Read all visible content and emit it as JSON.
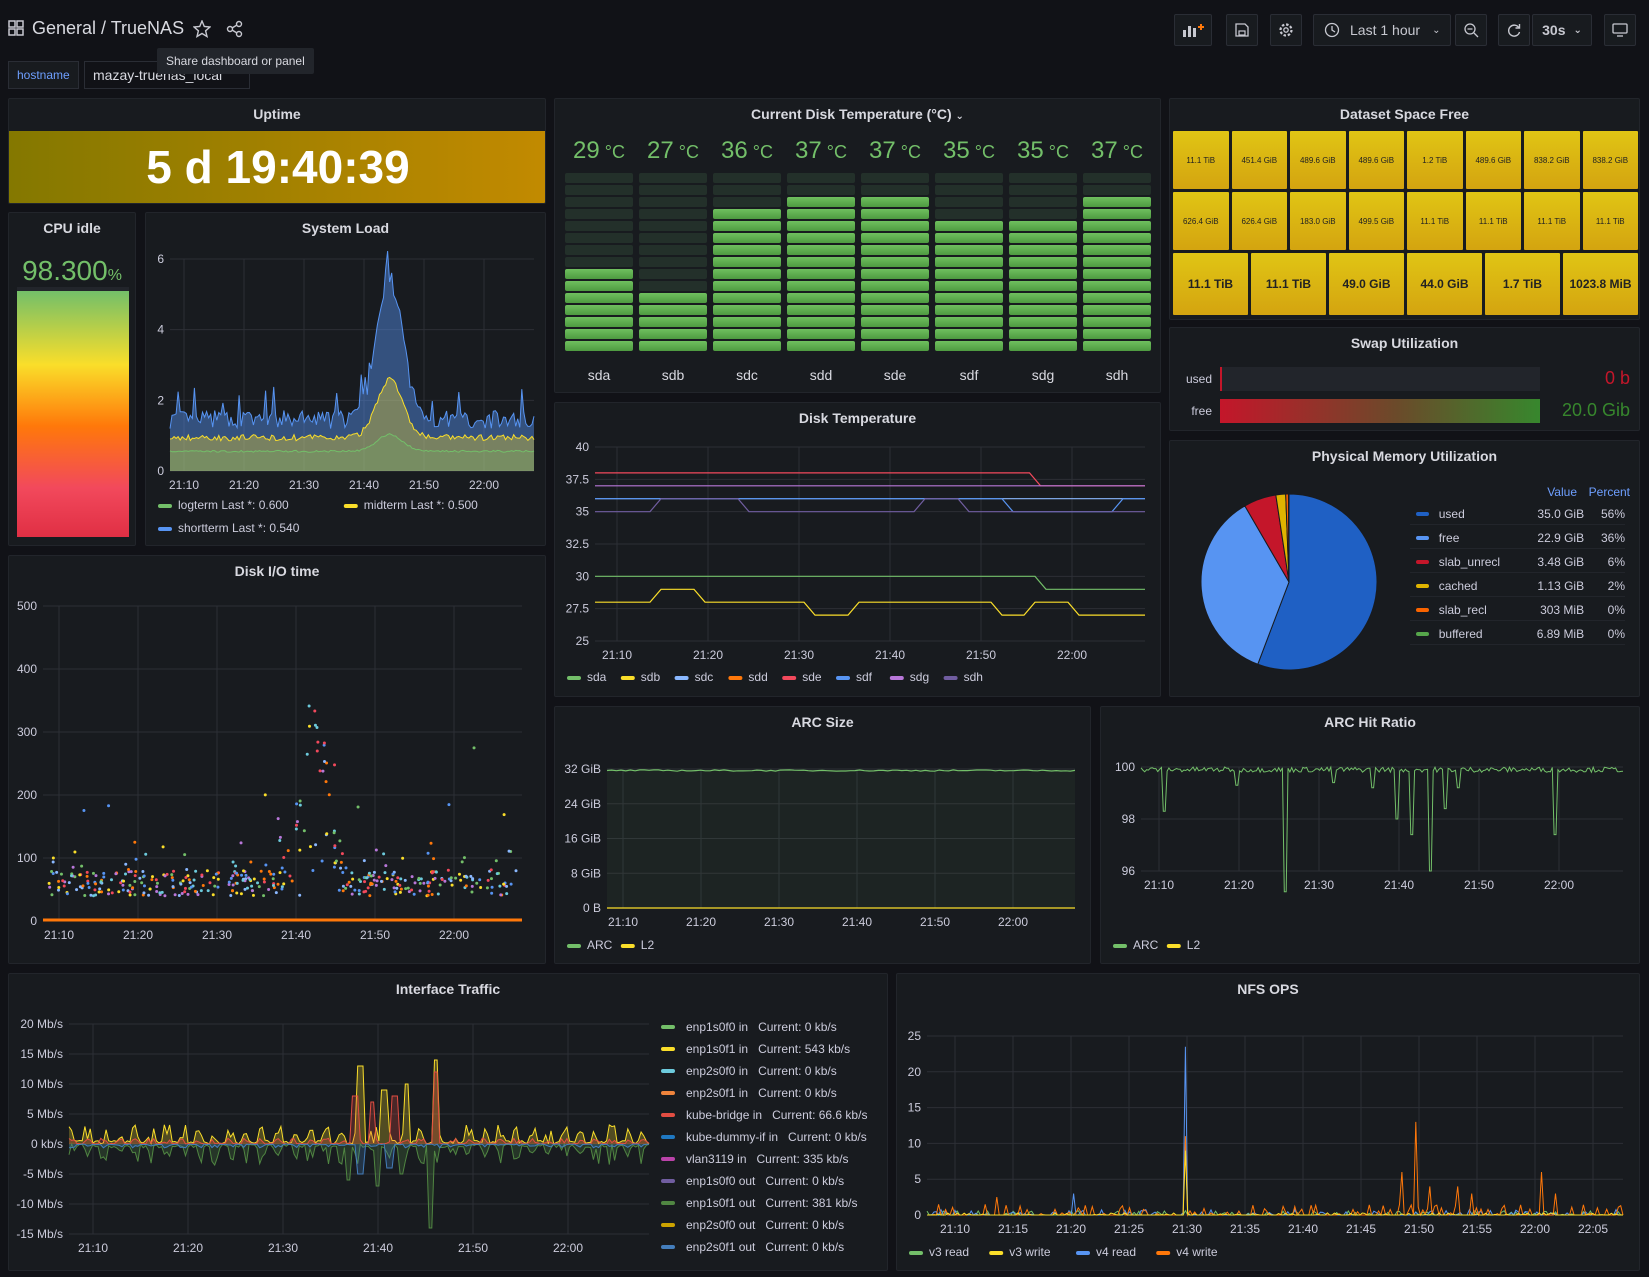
{
  "header": {
    "breadcrumb": "General / TrueNAS",
    "time_range": "Last 1 hour",
    "refresh": "30s",
    "tooltip": "Share dashboard or panel"
  },
  "variables": {
    "label": "hostname",
    "value": "mazay-truenas_local"
  },
  "colors": {
    "green": "#73bf69",
    "yellow": "#fade2a",
    "blue": "#5794f2",
    "orange": "#ff780a",
    "red": "#f2495c",
    "purple": "#b877d9",
    "cyan": "#8ab8ff",
    "accent": "#6e9fff"
  },
  "uptime": {
    "title": "Uptime",
    "value": "5 d 19:40:39"
  },
  "cpu": {
    "title": "CPU idle",
    "value": "98.300",
    "unit": "%",
    "fraction": 0.983
  },
  "sysload": {
    "title": "System Load",
    "yticks": [
      "0",
      "2",
      "4",
      "6"
    ],
    "xticks": [
      "21:10",
      "21:20",
      "21:30",
      "21:40",
      "21:50",
      "22:00"
    ],
    "legend": [
      {
        "name": "logterm",
        "stat": "Last *: 0.600",
        "color": "#73bf69"
      },
      {
        "name": "midterm",
        "stat": "Last *: 0.500",
        "color": "#fade2a"
      },
      {
        "name": "shortterm",
        "stat": "Last *: 0.540",
        "color": "#5794f2"
      }
    ]
  },
  "disktemp_now": {
    "title": "Current Disk Temperature (°C)",
    "unit": "°C",
    "min": 20,
    "max": 40,
    "disks": [
      {
        "name": "sda",
        "value": 29
      },
      {
        "name": "sdb",
        "value": 27
      },
      {
        "name": "sdc",
        "value": 36
      },
      {
        "name": "sdd",
        "value": 37
      },
      {
        "name": "sde",
        "value": 37
      },
      {
        "name": "sdf",
        "value": 35
      },
      {
        "name": "sdg",
        "value": 35
      },
      {
        "name": "sdh",
        "value": 37
      }
    ]
  },
  "dataset": {
    "title": "Dataset Space Free",
    "row1": [
      "11.1 TiB",
      "451.4 GiB",
      "489.6 GiB",
      "489.6 GiB",
      "1.2 TiB",
      "489.6 GiB",
      "838.2 GiB",
      "838.2 GiB"
    ],
    "row2": [
      "626.4 GiB",
      "626.4 GiB",
      "183.0 GiB",
      "499.5 GiB",
      "11.1 TiB",
      "11.1 TiB",
      "11.1 TiB",
      "11.1 TiB"
    ],
    "row3": [
      "11.1 TiB",
      "11.1 TiB",
      "49.0 GiB",
      "44.0 GiB",
      "1.7 TiB",
      "1023.8 MiB"
    ]
  },
  "swap": {
    "title": "Swap Utilization",
    "used_label": "used",
    "used_value": "0 b",
    "used_fraction": 0.0,
    "free_label": "free",
    "free_value": "20.0 Gib",
    "free_fraction": 1.0
  },
  "memory": {
    "title": "Physical Memory Utilization",
    "col_value": "Value",
    "col_percent": "Percent",
    "rows": [
      {
        "name": "used",
        "value": "35.0 GiB",
        "percent": "56%",
        "p": 56,
        "color": "#1f60c4"
      },
      {
        "name": "free",
        "value": "22.9 GiB",
        "percent": "36%",
        "p": 36,
        "color": "#5794f2"
      },
      {
        "name": "slab_unrecl",
        "value": "3.48 GiB",
        "percent": "6%",
        "p": 6,
        "color": "#c4162a"
      },
      {
        "name": "cached",
        "value": "1.13 GiB",
        "percent": "2%",
        "p": 1.8,
        "color": "#e0b400"
      },
      {
        "name": "slab_recl",
        "value": "303 MiB",
        "percent": "0%",
        "p": 0.5,
        "color": "#fa6400"
      },
      {
        "name": "buffered",
        "value": "6.89 MiB",
        "percent": "0%",
        "p": 0.1,
        "color": "#56a64b"
      }
    ]
  },
  "diskio": {
    "title": "Disk I/O time",
    "yticks": [
      "0",
      "100",
      "200",
      "300",
      "400",
      "500"
    ],
    "xticks": [
      "21:10",
      "21:20",
      "21:30",
      "21:40",
      "21:50",
      "22:00"
    ]
  },
  "disktemp": {
    "title": "Disk Temperature",
    "yticks": [
      "25",
      "27.5",
      "30",
      "32.5",
      "35",
      "37.5",
      "40"
    ],
    "xticks": [
      "21:10",
      "21:20",
      "21:30",
      "21:40",
      "21:50",
      "22:00"
    ],
    "legend": [
      {
        "name": "sda",
        "color": "#73bf69"
      },
      {
        "name": "sdb",
        "color": "#fade2a"
      },
      {
        "name": "sdc",
        "color": "#8ab8ff"
      },
      {
        "name": "sdd",
        "color": "#ff780a"
      },
      {
        "name": "sde",
        "color": "#f2495c"
      },
      {
        "name": "sdf",
        "color": "#5794f2"
      },
      {
        "name": "sdg",
        "color": "#b877d9"
      },
      {
        "name": "sdh",
        "color": "#705da0"
      }
    ]
  },
  "arcsize": {
    "title": "ARC Size",
    "yticks": [
      "0 B",
      "8 GiB",
      "16 GiB",
      "24 GiB",
      "32 GiB"
    ],
    "xticks": [
      "21:10",
      "21:20",
      "21:30",
      "21:40",
      "21:50",
      "22:00"
    ],
    "legend": [
      {
        "name": "ARC",
        "color": "#73bf69"
      },
      {
        "name": "L2",
        "color": "#fade2a"
      }
    ]
  },
  "archit": {
    "title": "ARC Hit Ratio",
    "yticks": [
      "96",
      "98",
      "100"
    ],
    "xticks": [
      "21:10",
      "21:20",
      "21:30",
      "21:40",
      "21:50",
      "22:00"
    ],
    "legend": [
      {
        "name": "ARC",
        "color": "#73bf69"
      },
      {
        "name": "L2",
        "color": "#fade2a"
      }
    ]
  },
  "iface": {
    "title": "Interface Traffic",
    "yticks": [
      "-15 Mb/s",
      "-10 Mb/s",
      "-5 Mb/s",
      "0 kb/s",
      "5 Mb/s",
      "10 Mb/s",
      "15 Mb/s",
      "20 Mb/s"
    ],
    "xticks": [
      "21:10",
      "21:20",
      "21:30",
      "21:40",
      "21:50",
      "22:00"
    ],
    "legend": [
      {
        "name": "enp1s0f0 in",
        "stat": "Current: 0 kb/s",
        "color": "#73bf69"
      },
      {
        "name": "enp1s0f1 in",
        "stat": "Current: 543 kb/s",
        "color": "#fade2a"
      },
      {
        "name": "enp2s0f0 in",
        "stat": "Current: 0 kb/s",
        "color": "#6ccadc"
      },
      {
        "name": "enp2s0f1 in",
        "stat": "Current: 0 kb/s",
        "color": "#ef843c"
      },
      {
        "name": "kube-bridge in",
        "stat": "Current: 66.6 kb/s",
        "color": "#e24d42"
      },
      {
        "name": "kube-dummy-if in",
        "stat": "Current: 0 kb/s",
        "color": "#1f78c1"
      },
      {
        "name": "vlan3119 in",
        "stat": "Current: 335 kb/s",
        "color": "#ba43a9"
      },
      {
        "name": "enp1s0f0 out",
        "stat": "Current: 0 kb/s",
        "color": "#705da0"
      },
      {
        "name": "enp1s0f1 out",
        "stat": "Current: 381 kb/s",
        "color": "#508642"
      },
      {
        "name": "enp2s0f0 out",
        "stat": "Current: 0 kb/s",
        "color": "#cca300"
      },
      {
        "name": "enp2s0f1 out",
        "stat": "Current: 0 kb/s",
        "color": "#447ebc"
      }
    ]
  },
  "nfs": {
    "title": "NFS OPS",
    "yticks": [
      "0",
      "5",
      "10",
      "15",
      "20",
      "25"
    ],
    "xticks": [
      "21:10",
      "21:15",
      "21:20",
      "21:25",
      "21:30",
      "21:35",
      "21:40",
      "21:45",
      "21:50",
      "21:55",
      "22:00",
      "22:05"
    ],
    "legend": [
      {
        "name": "v3 read",
        "color": "#73bf69"
      },
      {
        "name": "v3 write",
        "color": "#fade2a"
      },
      {
        "name": "v4 read",
        "color": "#5794f2"
      },
      {
        "name": "v4 write",
        "color": "#ff780a"
      }
    ]
  }
}
